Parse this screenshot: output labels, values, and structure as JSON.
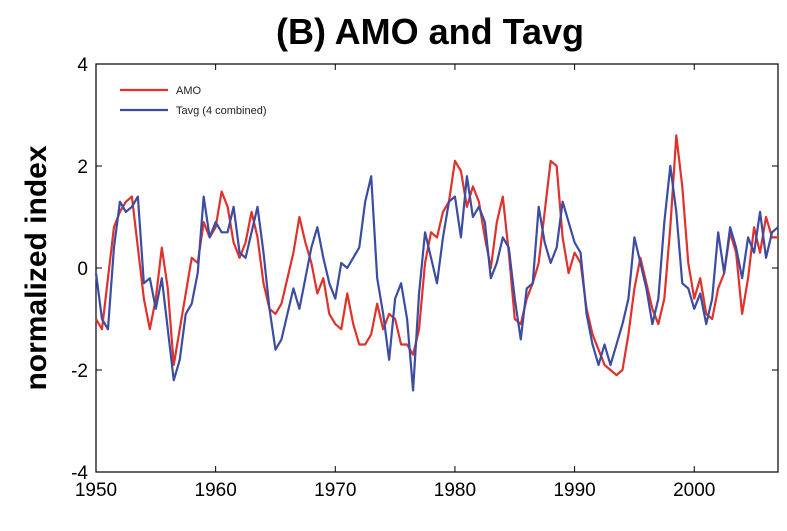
{
  "chart_data": {
    "type": "line",
    "title": "(B) AMO and Tavg",
    "xlabel": "",
    "ylabel": "normalized index",
    "xlim": [
      1950,
      2007
    ],
    "ylim": [
      -4,
      4
    ],
    "xticks": [
      1950,
      1960,
      1970,
      1980,
      1990,
      2000
    ],
    "yticks": [
      -4,
      -2,
      0,
      2,
      4
    ],
    "grid": false,
    "legend_position": "top-left",
    "colors": {
      "amo": "#e0312b",
      "tavg": "#3b4ca3"
    },
    "series": [
      {
        "name": "AMO",
        "x": [
          1950.0,
          1950.5,
          1951.0,
          1951.5,
          1952.0,
          1952.5,
          1953.0,
          1953.5,
          1954.0,
          1954.5,
          1955.0,
          1955.5,
          1956.0,
          1956.5,
          1957.0,
          1957.5,
          1958.0,
          1958.5,
          1959.0,
          1959.5,
          1960.0,
          1960.5,
          1961.0,
          1961.5,
          1962.0,
          1962.5,
          1963.0,
          1963.5,
          1964.0,
          1964.5,
          1965.0,
          1965.5,
          1966.0,
          1966.5,
          1967.0,
          1967.5,
          1968.0,
          1968.5,
          1969.0,
          1969.5,
          1970.0,
          1970.5,
          1971.0,
          1971.5,
          1972.0,
          1972.5,
          1973.0,
          1973.5,
          1974.0,
          1974.5,
          1975.0,
          1975.5,
          1976.0,
          1976.5,
          1977.0,
          1977.5,
          1978.0,
          1978.5,
          1979.0,
          1979.5,
          1980.0,
          1980.5,
          1981.0,
          1981.5,
          1982.0,
          1982.5,
          1983.0,
          1983.5,
          1984.0,
          1984.5,
          1985.0,
          1985.5,
          1986.0,
          1986.5,
          1987.0,
          1987.5,
          1988.0,
          1988.5,
          1989.0,
          1989.5,
          1990.0,
          1990.5,
          1991.0,
          1991.5,
          1992.0,
          1992.5,
          1993.0,
          1993.5,
          1994.0,
          1994.5,
          1995.0,
          1995.5,
          1996.0,
          1996.5,
          1997.0,
          1997.5,
          1998.0,
          1998.5,
          1999.0,
          1999.5,
          2000.0,
          2000.5,
          2001.0,
          2001.5,
          2002.0,
          2002.5,
          2003.0,
          2003.5,
          2004.0,
          2004.5,
          2005.0,
          2005.5,
          2006.0,
          2006.5,
          2007.0
        ],
        "values": [
          -1.0,
          -1.2,
          -0.2,
          0.8,
          1.1,
          1.3,
          1.4,
          0.4,
          -0.6,
          -1.2,
          -0.6,
          0.4,
          -0.4,
          -1.9,
          -1.2,
          -0.5,
          0.2,
          0.1,
          0.9,
          0.6,
          0.8,
          1.5,
          1.2,
          0.5,
          0.2,
          0.5,
          1.1,
          0.6,
          -0.3,
          -0.8,
          -0.9,
          -0.7,
          -0.2,
          0.3,
          1.0,
          0.5,
          0.1,
          -0.5,
          -0.2,
          -0.9,
          -1.1,
          -1.2,
          -0.5,
          -1.1,
          -1.5,
          -1.5,
          -1.3,
          -0.7,
          -1.2,
          -0.9,
          -1.0,
          -1.5,
          -1.5,
          -1.7,
          -1.2,
          0.1,
          0.7,
          0.6,
          1.1,
          1.3,
          2.1,
          1.9,
          1.2,
          1.6,
          1.3,
          0.6,
          0.0,
          0.9,
          1.4,
          0.3,
          -1.0,
          -1.1,
          -0.6,
          -0.3,
          0.1,
          1.1,
          2.1,
          2.0,
          0.6,
          -0.1,
          0.3,
          0.1,
          -0.8,
          -1.3,
          -1.6,
          -1.9,
          -2.0,
          -2.1,
          -2.0,
          -1.3,
          -0.4,
          0.2,
          -0.3,
          -0.8,
          -1.1,
          -0.6,
          0.8,
          2.6,
          1.6,
          0.1,
          -0.6,
          -0.2,
          -0.9,
          -1.0,
          -0.4,
          -0.1,
          0.7,
          0.3,
          -0.9,
          -0.2,
          0.8,
          0.3,
          1.0,
          0.6,
          0.6
        ]
      },
      {
        "name": "Tavg (4 combined)",
        "x": [
          1950.0,
          1950.5,
          1951.0,
          1951.5,
          1952.0,
          1952.5,
          1953.0,
          1953.5,
          1954.0,
          1954.5,
          1955.0,
          1955.5,
          1956.0,
          1956.5,
          1957.0,
          1957.5,
          1958.0,
          1958.5,
          1959.0,
          1959.5,
          1960.0,
          1960.5,
          1961.0,
          1961.5,
          1962.0,
          1962.5,
          1963.0,
          1963.5,
          1964.0,
          1964.5,
          1965.0,
          1965.5,
          1966.0,
          1966.5,
          1967.0,
          1967.5,
          1968.0,
          1968.5,
          1969.0,
          1969.5,
          1970.0,
          1970.5,
          1971.0,
          1971.5,
          1972.0,
          1972.5,
          1973.0,
          1973.5,
          1974.0,
          1974.5,
          1975.0,
          1975.5,
          1976.0,
          1976.5,
          1977.0,
          1977.5,
          1978.0,
          1978.5,
          1979.0,
          1979.5,
          1980.0,
          1980.5,
          1981.0,
          1981.5,
          1982.0,
          1982.5,
          1983.0,
          1983.5,
          1984.0,
          1984.5,
          1985.0,
          1985.5,
          1986.0,
          1986.5,
          1987.0,
          1987.5,
          1988.0,
          1988.5,
          1989.0,
          1989.5,
          1990.0,
          1990.5,
          1991.0,
          1991.5,
          1992.0,
          1992.5,
          1993.0,
          1993.5,
          1994.0,
          1994.5,
          1995.0,
          1995.5,
          1996.0,
          1996.5,
          1997.0,
          1997.5,
          1998.0,
          1998.5,
          1999.0,
          1999.5,
          2000.0,
          2000.5,
          2001.0,
          2001.5,
          2002.0,
          2002.5,
          2003.0,
          2003.5,
          2004.0,
          2004.5,
          2005.0,
          2005.5,
          2006.0,
          2006.5,
          2007.0
        ],
        "values": [
          -0.1,
          -1.0,
          -1.2,
          0.4,
          1.3,
          1.1,
          1.2,
          1.4,
          -0.3,
          -0.2,
          -0.8,
          -0.2,
          -1.2,
          -2.2,
          -1.8,
          -0.9,
          -0.7,
          -0.1,
          1.4,
          0.6,
          0.9,
          0.7,
          0.7,
          1.2,
          0.3,
          0.2,
          0.7,
          1.2,
          0.3,
          -0.8,
          -1.6,
          -1.4,
          -0.9,
          -0.4,
          -0.8,
          -0.2,
          0.4,
          0.8,
          0.2,
          -0.3,
          -0.6,
          0.1,
          0.0,
          0.2,
          0.4,
          1.3,
          1.8,
          -0.2,
          -0.9,
          -1.8,
          -0.6,
          -0.3,
          -1.0,
          -2.4,
          -0.5,
          0.7,
          0.2,
          -0.3,
          0.6,
          1.3,
          1.4,
          0.6,
          1.8,
          1.0,
          1.2,
          0.9,
          -0.2,
          0.1,
          0.6,
          0.4,
          -0.6,
          -1.4,
          -0.4,
          -0.3,
          1.2,
          0.5,
          0.1,
          0.4,
          1.3,
          0.9,
          0.5,
          0.3,
          -0.9,
          -1.5,
          -1.9,
          -1.5,
          -1.9,
          -1.5,
          -1.1,
          -0.6,
          0.6,
          0.1,
          -0.4,
          -1.1,
          -0.6,
          0.9,
          2.0,
          1.1,
          -0.3,
          -0.4,
          -0.8,
          -0.5,
          -1.1,
          -0.6,
          0.7,
          -0.1,
          0.8,
          0.4,
          -0.2,
          0.6,
          0.3,
          1.1,
          0.2,
          0.7,
          0.8
        ]
      }
    ]
  }
}
